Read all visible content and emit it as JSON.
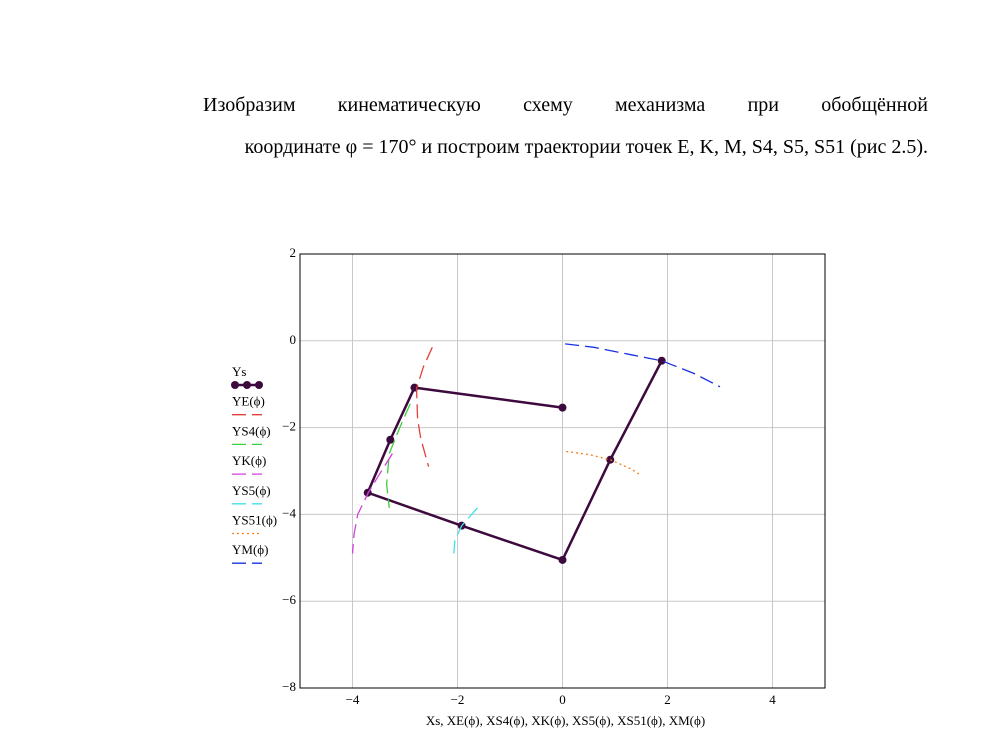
{
  "document": {
    "paragraph_lines": [
      "Изобразим кинематическую схему механизма при обобщённой",
      "координате φ = 170° и построим траектории точек E, K, M, S4, S5, S51 (рис 2.5)."
    ]
  },
  "chart_data": {
    "type": "line",
    "x_label": "Xs, XE(ϕ), XS4(ϕ), XK(ϕ), XS5(ϕ), XS51(ϕ), XM(ϕ)",
    "xlim": [
      -5,
      5
    ],
    "ylim": [
      2,
      -8
    ],
    "xticks": [
      {
        "value": -4,
        "label": "−4"
      },
      {
        "value": -2,
        "label": "−2"
      },
      0,
      2,
      4
    ],
    "yticks": [
      2,
      0,
      {
        "value": -2,
        "label": "−2"
      },
      {
        "value": -4,
        "label": "−4"
      },
      {
        "value": -6,
        "label": "−6"
      },
      {
        "value": -8,
        "label": "−8"
      }
    ],
    "grid": true,
    "series": [
      {
        "name": "Ys",
        "color": "#3d0a3d",
        "line_style": "solid-markers",
        "x": [
          0,
          -2.82,
          -3.28,
          -3.71,
          -1.92,
          0,
          0.91,
          1.89
        ],
        "values": [
          -1.54,
          -1.08,
          -2.28,
          -3.5,
          -4.26,
          -5.05,
          -2.74,
          -0.46
        ]
      },
      {
        "name": "YE(ϕ)",
        "color": "#e0413a",
        "line_style": "dashed",
        "x": [
          -2.48,
          -2.65,
          -2.78,
          -2.76,
          -2.7,
          -2.55
        ],
        "values": [
          -0.15,
          -0.6,
          -1.1,
          -1.8,
          -2.25,
          -2.9
        ]
      },
      {
        "name": "YS4(ϕ)",
        "color": "#3ccf3c",
        "line_style": "dashed",
        "x": [
          -2.9,
          -3.1,
          -3.3,
          -3.35,
          -3.3
        ],
        "values": [
          -1.45,
          -2.0,
          -2.6,
          -3.3,
          -3.85
        ]
      },
      {
        "name": "YK(ϕ)",
        "color": "#d040d8",
        "line_style": "dashed",
        "x": [
          -3.24,
          -3.5,
          -3.7,
          -3.9,
          -3.97,
          -4.0
        ],
        "values": [
          -2.6,
          -3.1,
          -3.5,
          -4.0,
          -4.45,
          -4.9
        ]
      },
      {
        "name": "YS5(ϕ)",
        "color": "#40e0e8",
        "line_style": "dashed",
        "x": [
          -1.62,
          -1.92,
          -2.05,
          -2.07
        ],
        "values": [
          -3.85,
          -4.26,
          -4.6,
          -4.9
        ]
      },
      {
        "name": "YS51(ϕ)",
        "color": "#f08020",
        "line_style": "dotted",
        "x": [
          0.07,
          0.5,
          0.91,
          1.3,
          1.5
        ],
        "values": [
          -2.55,
          -2.62,
          -2.74,
          -2.95,
          -3.1
        ]
      },
      {
        "name": "YM(ϕ)",
        "color": "#1830e0",
        "line_style": "dashed",
        "x": [
          0.05,
          0.6,
          1.3,
          1.89,
          2.5,
          3.0
        ],
        "values": [
          -0.07,
          -0.15,
          -0.32,
          -0.46,
          -0.75,
          -1.06
        ]
      }
    ]
  }
}
